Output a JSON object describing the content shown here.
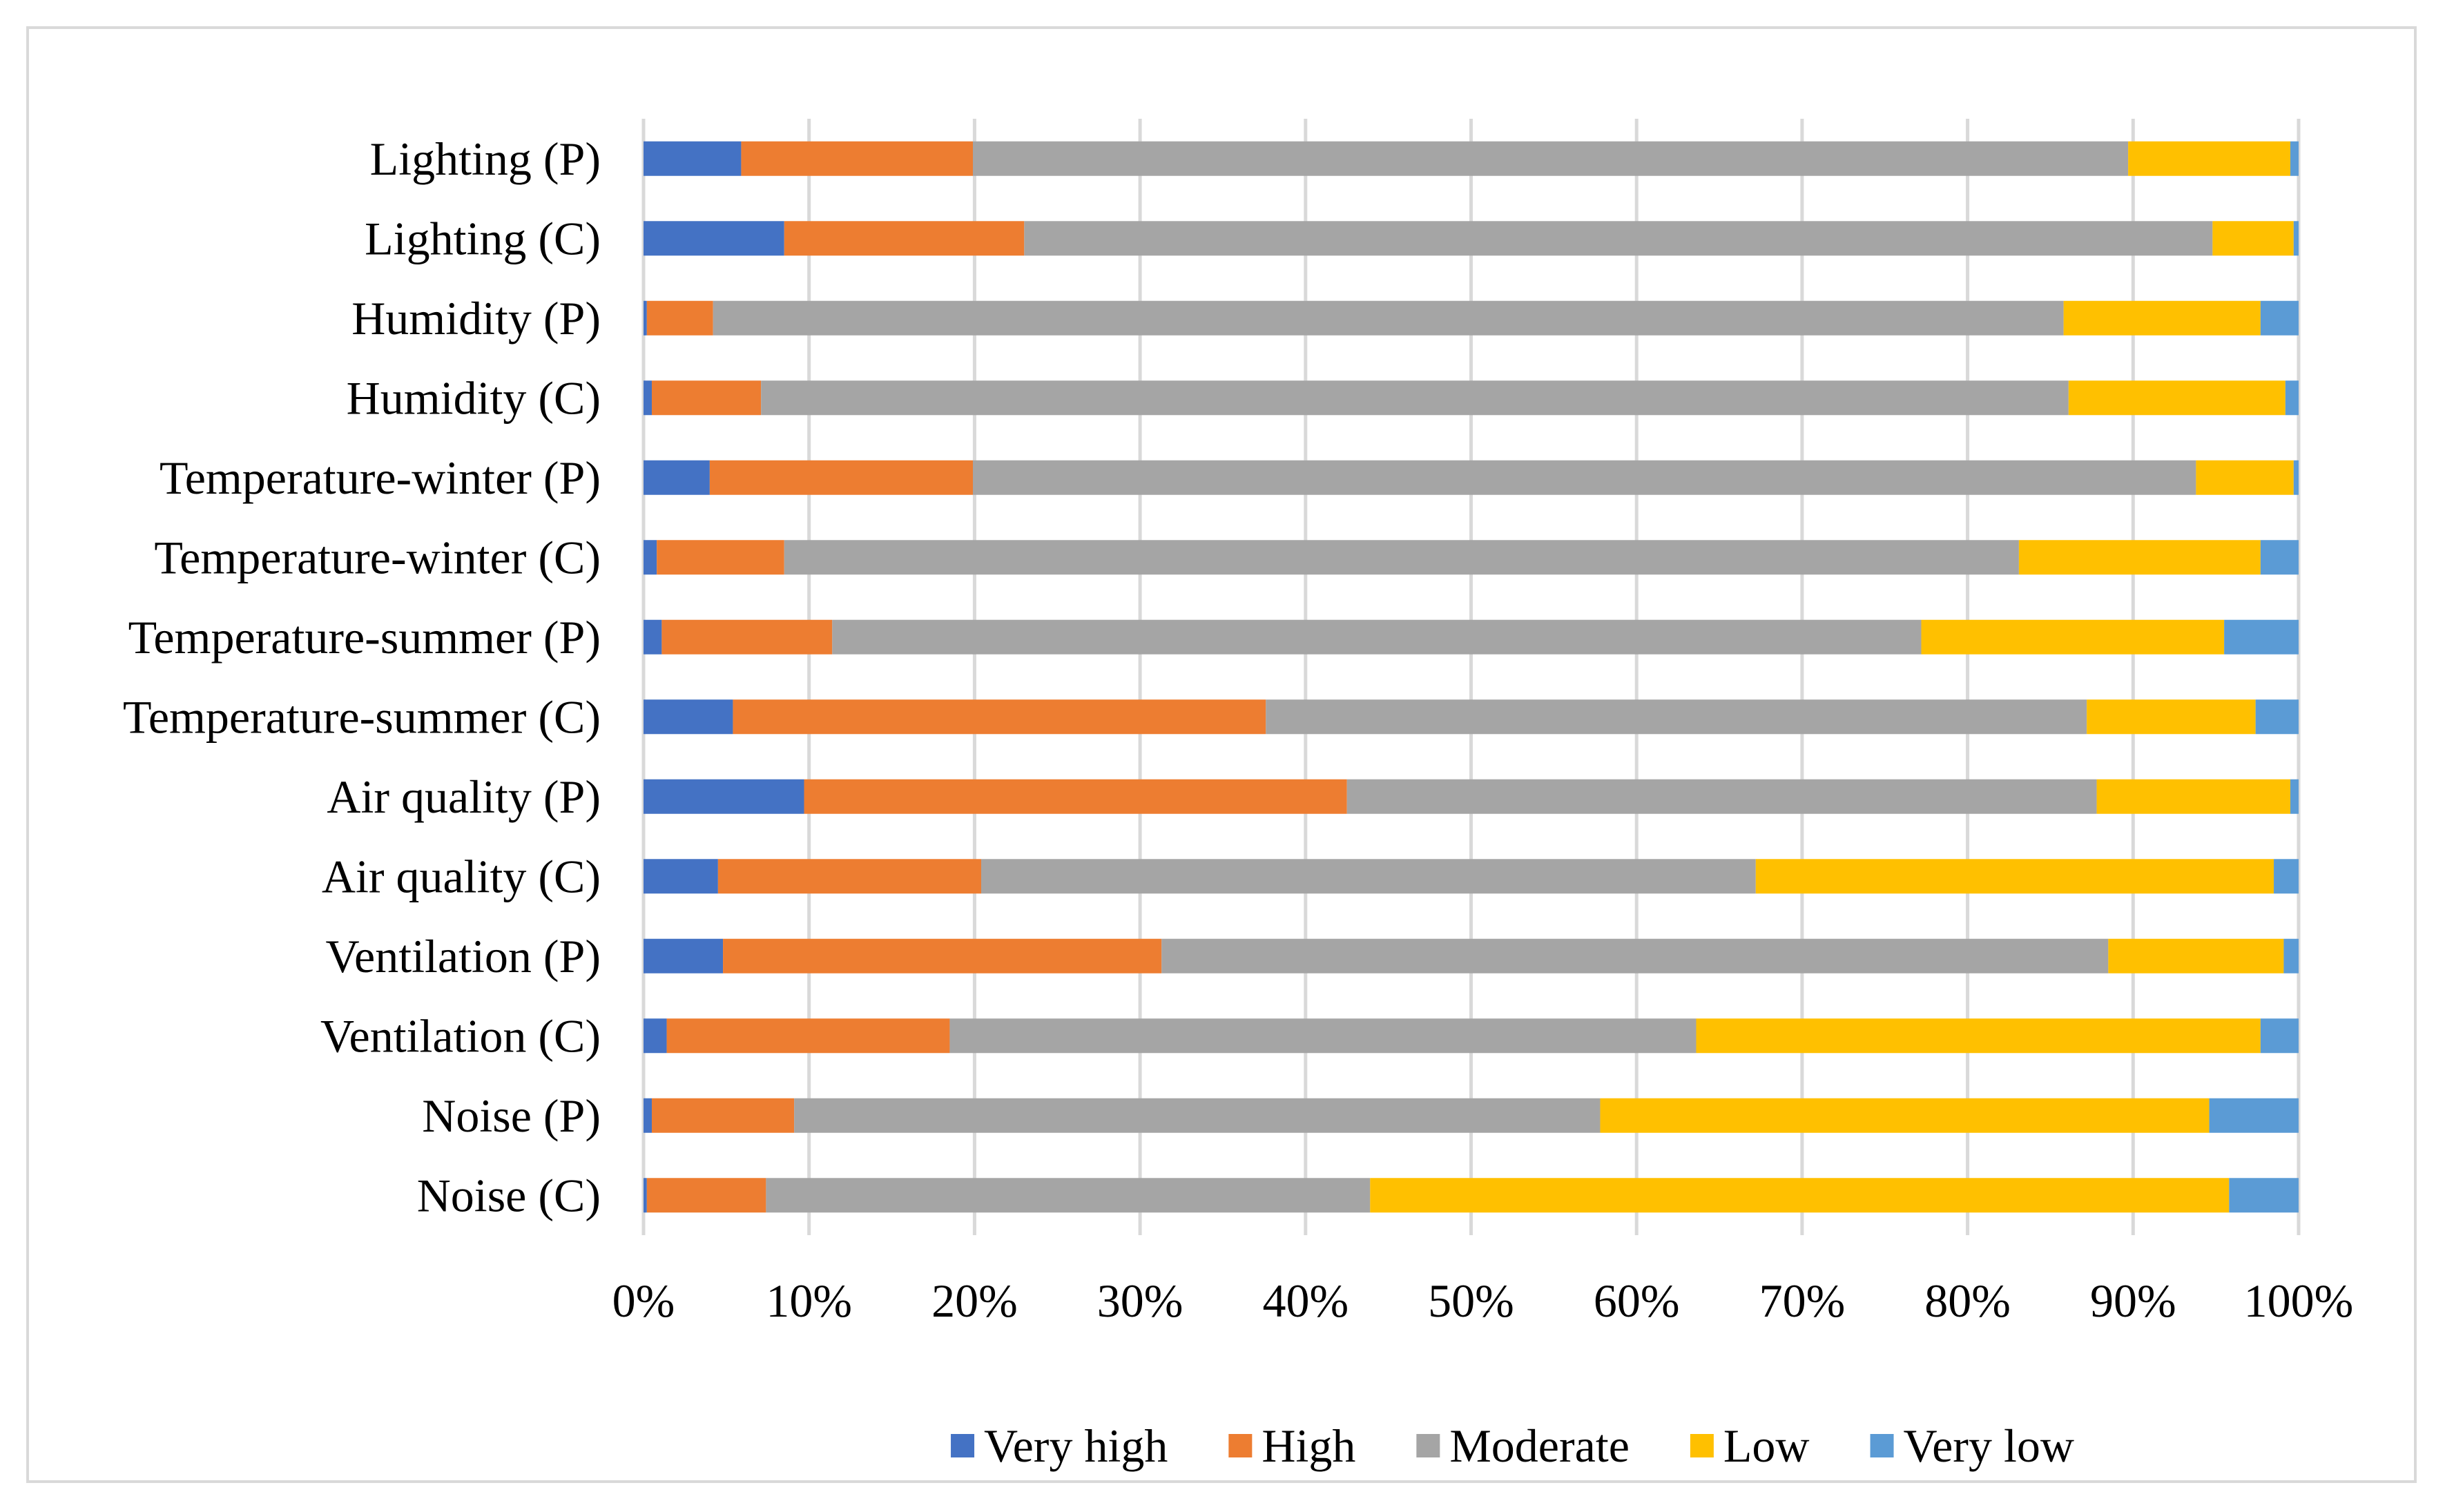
{
  "chart_data": {
    "type": "bar",
    "orientation": "horizontal",
    "stacked": "percent",
    "title": "",
    "xlabel": "",
    "ylabel": "",
    "xlim": [
      0,
      100
    ],
    "grid": true,
    "legend_position": "bottom",
    "categories": [
      "Lighting (P)",
      "Lighting (C)",
      "Humidity (P)",
      "Humidity (C)",
      "Temperature-winter (P)",
      "Temperature-winter (C)",
      "Temperature-summer (P)",
      "Temperature-summer (C)",
      "Air quality (P)",
      "Air quality (C)",
      "Ventilation (P)",
      "Ventilation (C)",
      "Noise (P)",
      "Noise (C)"
    ],
    "tick_labels": [
      "0%",
      "10%",
      "20%",
      "30%",
      "40%",
      "50%",
      "60%",
      "70%",
      "80%",
      "90%",
      "100%"
    ],
    "series": [
      {
        "name": "Very high",
        "color": "#4472C4",
        "values": [
          5.9,
          8.5,
          0.2,
          0.5,
          4.0,
          0.8,
          1.1,
          5.4,
          9.7,
          4.5,
          4.8,
          1.4,
          0.5,
          0.2
        ]
      },
      {
        "name": "High",
        "color": "#ED7D31",
        "values": [
          14.0,
          14.5,
          4.0,
          6.6,
          15.9,
          7.7,
          10.3,
          32.2,
          32.8,
          15.9,
          26.5,
          17.1,
          8.6,
          7.2
        ]
      },
      {
        "name": "Moderate",
        "color": "#A5A5A5",
        "values": [
          69.8,
          71.8,
          81.6,
          79.0,
          73.9,
          74.6,
          65.8,
          49.6,
          45.3,
          46.8,
          57.2,
          45.1,
          48.7,
          36.5
        ]
      },
      {
        "name": "Low",
        "color": "#FFC000",
        "values": [
          9.8,
          4.9,
          11.9,
          13.1,
          5.9,
          14.6,
          18.3,
          10.2,
          11.7,
          31.3,
          10.6,
          34.1,
          36.8,
          51.9
        ]
      },
      {
        "name": "Very low",
        "color": "#5B9BD5",
        "values": [
          0.5,
          0.3,
          2.3,
          0.8,
          0.3,
          2.3,
          4.5,
          2.6,
          0.5,
          1.5,
          0.9,
          2.3,
          5.4,
          4.2
        ]
      }
    ]
  }
}
